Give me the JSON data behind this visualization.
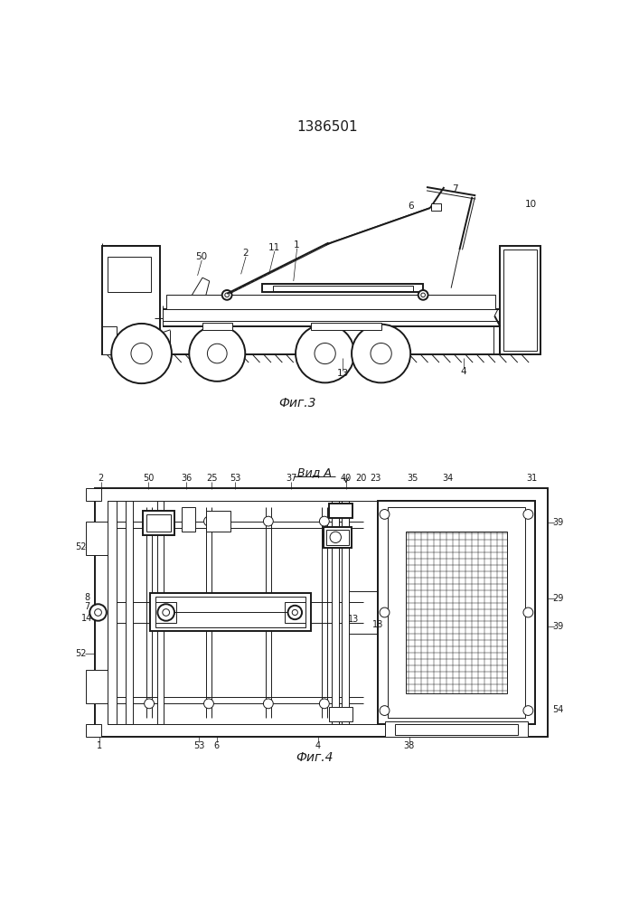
{
  "title": "1386501",
  "background_color": "#ffffff",
  "line_color": "#1a1a1a",
  "fig3_caption": "Фиг.3",
  "fig4_caption": "Фиг.4",
  "vid_a_label": "Вид А"
}
